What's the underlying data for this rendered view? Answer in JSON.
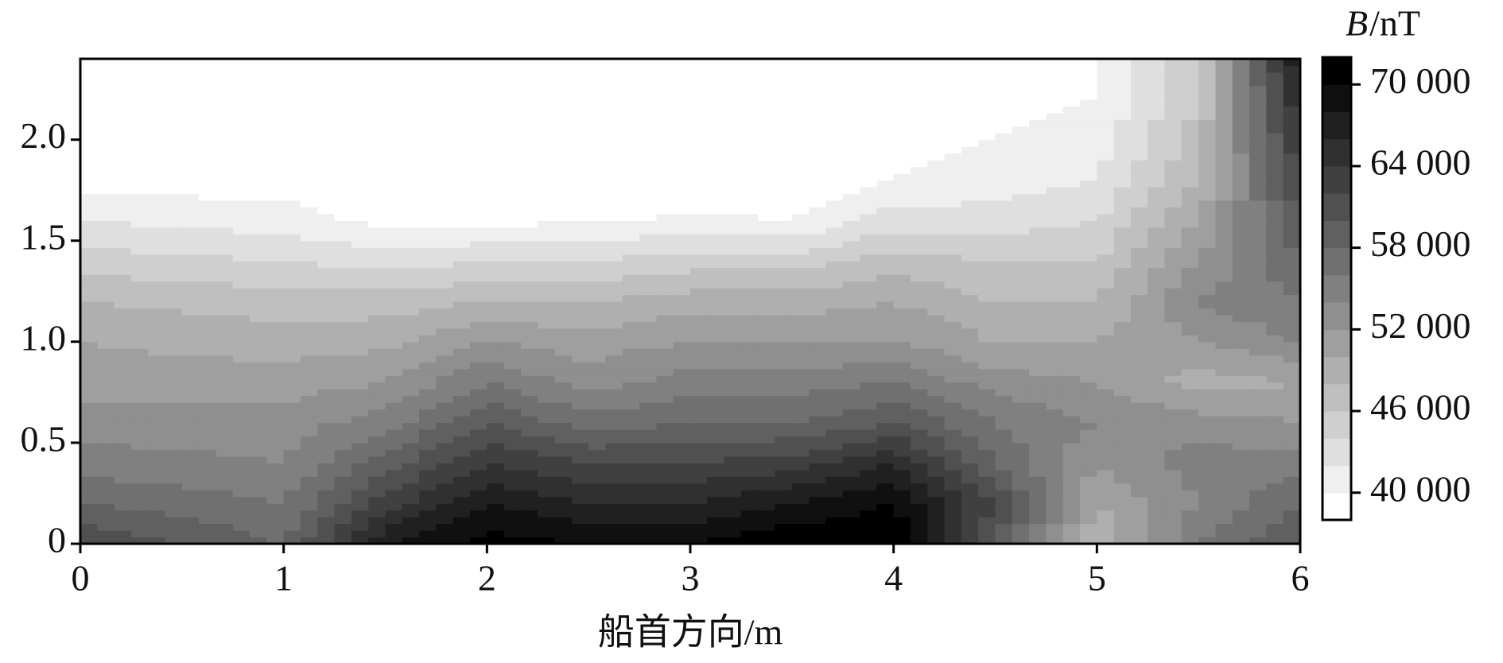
{
  "chart_data": {
    "type": "contour",
    "xlabel": "船首方向/m",
    "colorbar_symbol": "B",
    "colorbar_unit": "/nT",
    "x": [
      0,
      0.5,
      1,
      1.5,
      2,
      2.5,
      3,
      3.5,
      4,
      4.5,
      5,
      5.5,
      6
    ],
    "y": [
      0,
      0.2,
      0.4,
      0.6,
      0.8,
      1.0,
      1.2,
      1.4,
      1.6,
      1.8,
      2.0,
      2.2,
      2.4
    ],
    "z": [
      [
        62000,
        60000,
        58000,
        68000,
        71000,
        70000,
        70000,
        72000,
        72000,
        60000,
        48000,
        56000,
        60000
      ],
      [
        58000,
        57000,
        56000,
        63000,
        68000,
        66000,
        66000,
        68000,
        70000,
        62000,
        50000,
        54000,
        58000
      ],
      [
        55000,
        54500,
        54000,
        59000,
        64000,
        62000,
        62000,
        63000,
        66000,
        58000,
        52000,
        55000,
        55000
      ],
      [
        53000,
        53000,
        53000,
        55000,
        60000,
        57000,
        58000,
        58000,
        60000,
        56000,
        54000,
        53000,
        52000
      ],
      [
        51000,
        51000,
        51000,
        52000,
        56000,
        53000,
        55000,
        55000,
        56000,
        53000,
        52000,
        49000,
        50000
      ],
      [
        50000,
        49500,
        49000,
        49500,
        52000,
        51000,
        52000,
        52000,
        52000,
        50000,
        50000,
        52000,
        54000
      ],
      [
        48000,
        47500,
        47000,
        47000,
        48000,
        48000,
        49000,
        49000,
        50000,
        48000,
        48000,
        54000,
        56000
      ],
      [
        45000,
        44500,
        44000,
        43000,
        44000,
        44000,
        45000,
        45000,
        47000,
        46000,
        46000,
        52000,
        58000
      ],
      [
        42000,
        41500,
        41000,
        39500,
        39500,
        39800,
        40500,
        40000,
        43000,
        43000,
        44000,
        50000,
        60000
      ],
      [
        39000,
        39000,
        39000,
        37000,
        37000,
        37000,
        38000,
        38000,
        40000,
        41000,
        42000,
        48000,
        62000
      ],
      [
        37500,
        37500,
        37500,
        37000,
        37000,
        37000,
        37000,
        37000,
        39000,
        40000,
        41000,
        47000,
        64000
      ],
      [
        37000,
        37000,
        37000,
        37000,
        37000,
        37000,
        37000,
        37000,
        37000,
        39000,
        40000,
        46000,
        66000
      ],
      [
        37000,
        37000,
        37000,
        37000,
        37000,
        37000,
        37000,
        37000,
        37000,
        38500,
        39500,
        46000,
        68000
      ]
    ],
    "xlim": [
      0,
      6
    ],
    "ylim": [
      0,
      2.4
    ],
    "xticks": [
      0,
      1,
      2,
      3,
      4,
      5,
      6
    ],
    "yticks": [
      0,
      0.5,
      {
        "value": 1,
        "label": "1.0"
      },
      1.5,
      {
        "value": 2,
        "label": "2.0"
      }
    ],
    "levels": [
      38000,
      40000,
      42000,
      44000,
      46000,
      48000,
      50000,
      52000,
      54000,
      56000,
      58000,
      60000,
      62000,
      64000,
      66000,
      68000,
      70000,
      72000
    ],
    "colorbar_ticks": [
      {
        "value": 40000,
        "label": "40 000"
      },
      {
        "value": 46000,
        "label": "46 000"
      },
      {
        "value": 52000,
        "label": "52 000"
      },
      {
        "value": 58000,
        "label": "58 000"
      },
      {
        "value": 64000,
        "label": "64 000"
      },
      {
        "value": 70000,
        "label": "70 000"
      }
    ]
  }
}
